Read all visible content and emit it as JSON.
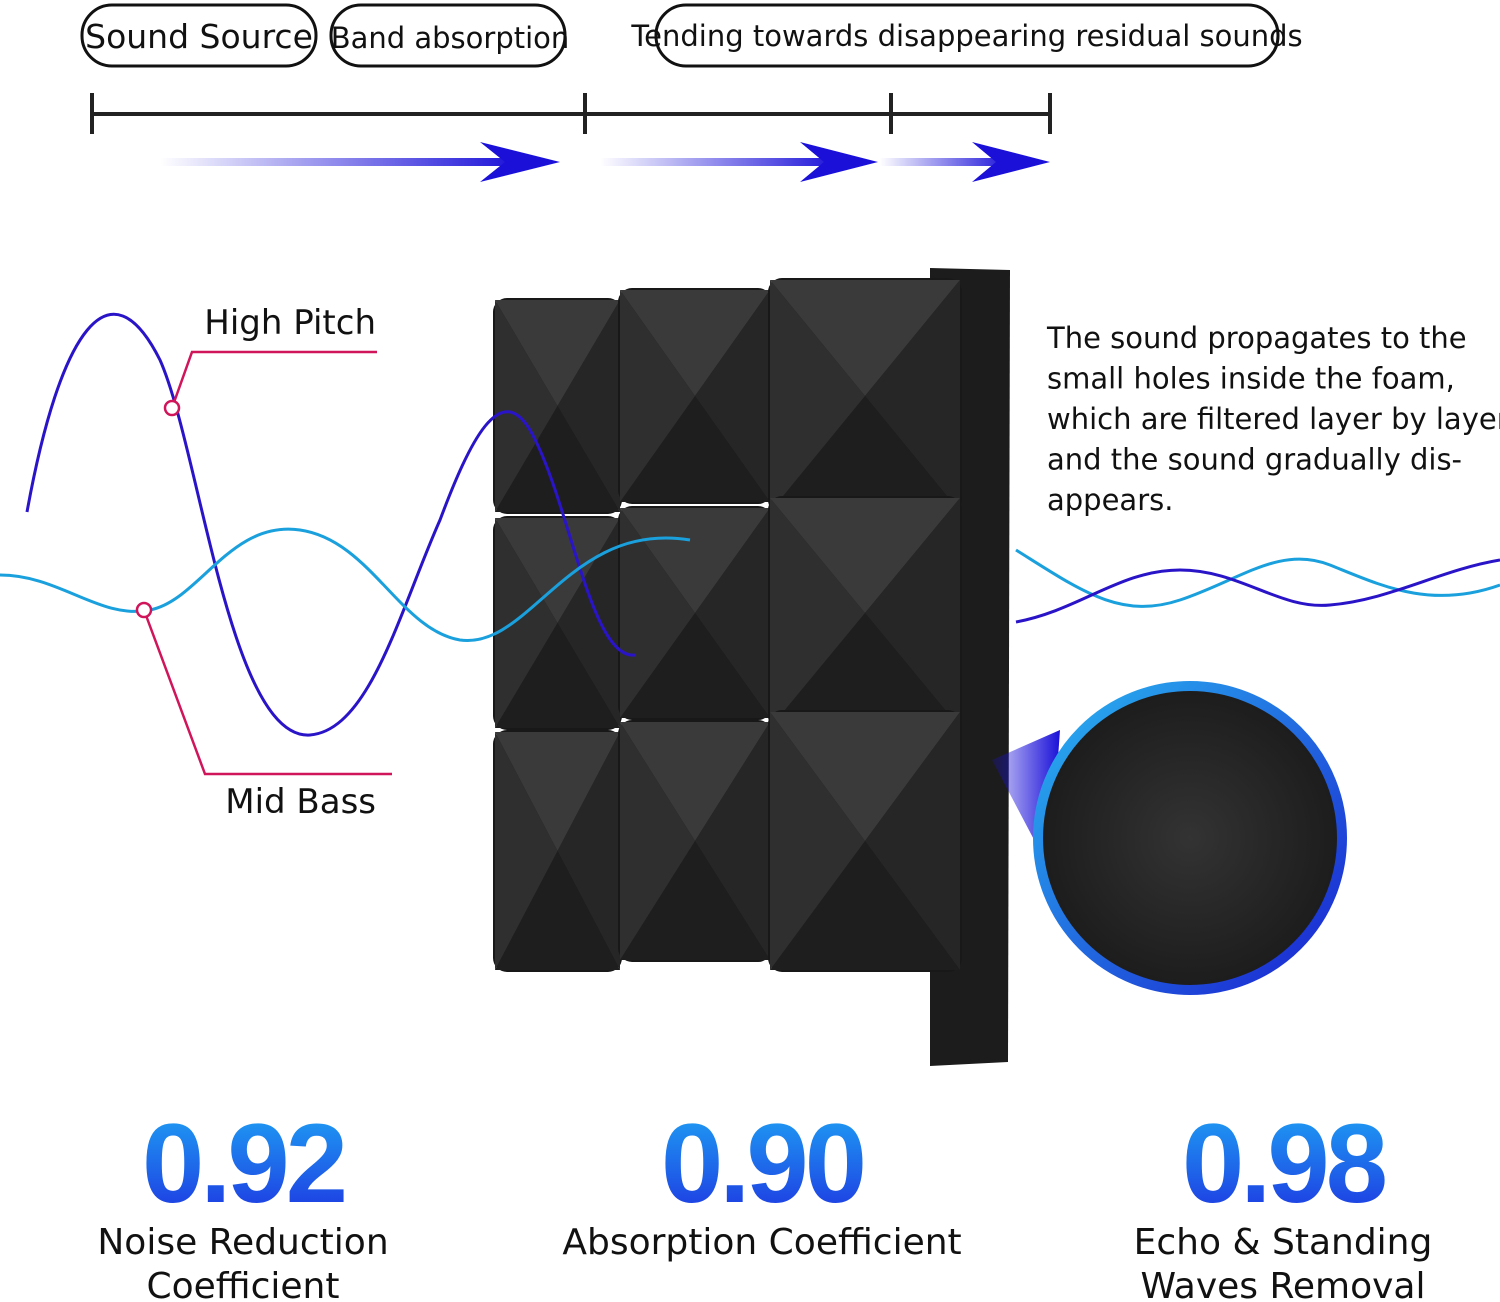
{
  "stages": [
    "Sound Source",
    "Band absorption",
    "Tending towards disappearing residual sounds"
  ],
  "waves": {
    "high": "High Pitch",
    "mid": "Mid Bass"
  },
  "description": [
    "The sound propagates to the",
    "small holes inside the foam,",
    "which are filtered layer by layer,",
    "and the sound gradually dis-",
    "appears."
  ],
  "stats": [
    {
      "value": "0.92",
      "label": [
        "Noise Reduction",
        "Coefficient"
      ]
    },
    {
      "value": "0.90",
      "label": [
        "Absorption Coefficient"
      ]
    },
    {
      "value": "0.98",
      "label": [
        "Echo & Standing",
        "Waves Removal"
      ]
    }
  ]
}
